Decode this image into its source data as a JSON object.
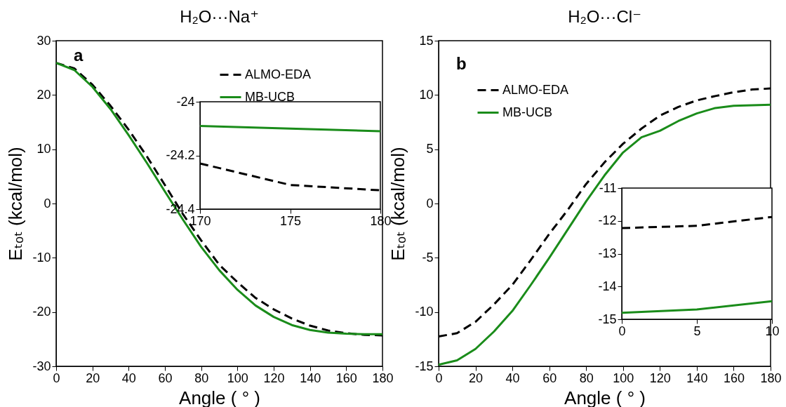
{
  "chart_data": [
    {
      "type": "line",
      "title": "H₂O···Na⁺",
      "xlabel": "Angle ( ° )",
      "ylabel": "Eₜₒₜ (kcal/mol)",
      "x": [
        0,
        10,
        20,
        30,
        40,
        50,
        60,
        70,
        80,
        90,
        100,
        110,
        120,
        130,
        140,
        150,
        160,
        170,
        180
      ],
      "xlim": [
        0,
        180
      ],
      "xticks": [
        0,
        20,
        40,
        60,
        80,
        100,
        120,
        140,
        160,
        180
      ],
      "ylim": [
        -30,
        30
      ],
      "yticks": [
        -30,
        -20,
        -10,
        0,
        10,
        20,
        30
      ],
      "legend": "top right",
      "annotations": [
        "a"
      ],
      "series": [
        {
          "name": "ALMO-EDA",
          "color": "#000000",
          "line_style": "dashed",
          "values": [
            25.9,
            24.9,
            21.9,
            18.0,
            13.6,
            8.7,
            3.4,
            -2.0,
            -6.8,
            -11.3,
            -14.5,
            -17.4,
            -19.5,
            -21.2,
            -22.5,
            -23.4,
            -23.9,
            -24.2,
            -24.3
          ]
        },
        {
          "name": "MB-UCB",
          "color": "#1a8c1a",
          "line_style": "solid",
          "values": [
            25.9,
            24.6,
            21.5,
            17.4,
            12.6,
            7.5,
            2.2,
            -3.0,
            -8.0,
            -12.3,
            -15.9,
            -18.8,
            -20.9,
            -22.4,
            -23.3,
            -23.8,
            -24.0,
            -24.1,
            -24.1
          ]
        }
      ]
    },
    {
      "type": "line",
      "x": [
        170,
        175,
        180
      ],
      "xlim": [
        170,
        180
      ],
      "xticks": [
        170,
        175,
        180
      ],
      "ylim": [
        -24.4,
        -24
      ],
      "yticks": [
        -24.4,
        -24.2,
        -24
      ],
      "series": [
        {
          "color": "#000000",
          "line_style": "dashed",
          "values": [
            -24.23,
            -24.31,
            -24.33
          ]
        },
        {
          "color": "#1a8c1a",
          "line_style": "solid",
          "values": [
            -24.09,
            -24.1,
            -24.11
          ]
        }
      ]
    },
    {
      "type": "line",
      "title": "H₂O···Cl⁻",
      "xlabel": "Angle ( ° )",
      "ylabel": "Eₜₒₜ (kcal/mol)",
      "x": [
        0,
        10,
        20,
        30,
        40,
        50,
        60,
        70,
        80,
        90,
        100,
        110,
        120,
        130,
        140,
        150,
        160,
        170,
        180
      ],
      "xlim": [
        0,
        180
      ],
      "xticks": [
        0,
        20,
        40,
        60,
        80,
        100,
        120,
        140,
        160,
        180
      ],
      "ylim": [
        -15,
        15
      ],
      "yticks": [
        -15,
        -10,
        -5,
        0,
        5,
        10,
        15
      ],
      "legend": "top left",
      "annotations": [
        "b"
      ],
      "series": [
        {
          "name": "ALMO-EDA",
          "color": "#000000",
          "line_style": "dashed",
          "values": [
            -12.25,
            -11.95,
            -10.9,
            -9.3,
            -7.5,
            -5.2,
            -2.8,
            -0.6,
            1.8,
            3.8,
            5.5,
            6.9,
            8.1,
            8.9,
            9.5,
            9.9,
            10.25,
            10.5,
            10.6
          ]
        },
        {
          "name": "MB-UCB",
          "color": "#1a8c1a",
          "line_style": "solid",
          "values": [
            -14.85,
            -14.45,
            -13.4,
            -11.8,
            -9.9,
            -7.5,
            -5.0,
            -2.4,
            0.2,
            2.6,
            4.7,
            6.1,
            6.7,
            7.6,
            8.3,
            8.8,
            9.0,
            9.05,
            9.1
          ]
        }
      ]
    },
    {
      "type": "line",
      "x": [
        0,
        5,
        10
      ],
      "xlim": [
        0,
        10
      ],
      "xticks": [
        0,
        5,
        10
      ],
      "ylim": [
        -15,
        -11
      ],
      "yticks": [
        -15,
        -14,
        -13,
        -12,
        -11
      ],
      "series": [
        {
          "color": "#000000",
          "line_style": "dashed",
          "values": [
            -12.22,
            -12.15,
            -11.88
          ]
        },
        {
          "color": "#1a8c1a",
          "line_style": "solid",
          "values": [
            -14.8,
            -14.7,
            -14.45
          ]
        }
      ]
    }
  ]
}
